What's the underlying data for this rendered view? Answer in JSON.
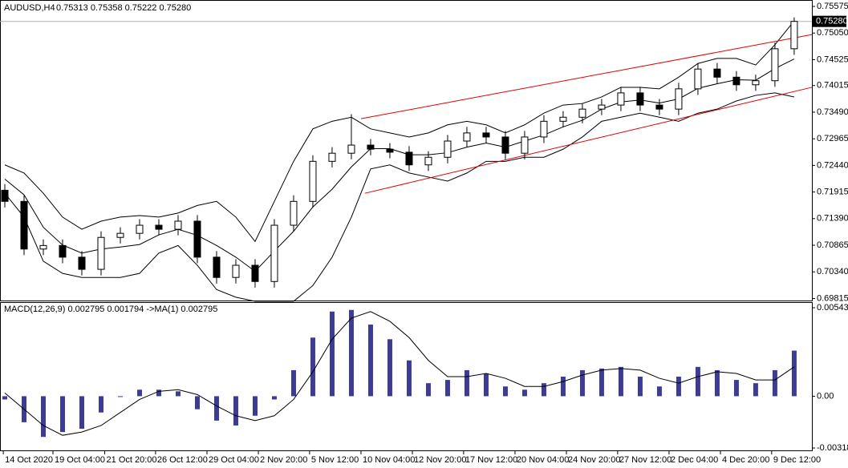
{
  "chart_data": [
    {
      "type": "candlestick",
      "title": "AUDUSD,H4",
      "subtitle": "0.75313 0.75358 0.75222 0.75280",
      "open": [
        0.7195,
        0.7173,
        0.7079,
        0.7086,
        0.7063,
        0.7039,
        0.7102,
        0.711,
        0.7126,
        0.7118,
        0.7134,
        0.7063,
        0.7023,
        0.7047,
        0.7015,
        0.7126,
        0.7173,
        0.7252,
        0.7268,
        0.7284,
        0.7276,
        0.727,
        0.7245,
        0.726,
        0.7292,
        0.7308,
        0.73,
        0.7268,
        0.73,
        0.7331,
        0.7339,
        0.7355,
        0.7363,
        0.7387,
        0.7363,
        0.7355,
        0.7395,
        0.7434,
        0.7418,
        0.7403,
        0.7411,
        0.7474
      ],
      "high": [
        0.7207,
        0.7185,
        0.7098,
        0.7098,
        0.7075,
        0.7114,
        0.7122,
        0.7138,
        0.7138,
        0.7146,
        0.7146,
        0.7075,
        0.7059,
        0.7059,
        0.7138,
        0.7185,
        0.7264,
        0.728,
        0.7345,
        0.7296,
        0.7288,
        0.7282,
        0.7272,
        0.7304,
        0.732,
        0.732,
        0.7312,
        0.7312,
        0.7343,
        0.7351,
        0.7367,
        0.7375,
        0.7399,
        0.7399,
        0.7375,
        0.7407,
        0.7446,
        0.7446,
        0.743,
        0.7423,
        0.7486,
        0.7536
      ],
      "low": [
        0.7161,
        0.7067,
        0.7067,
        0.7051,
        0.7027,
        0.7027,
        0.709,
        0.7098,
        0.7106,
        0.7106,
        0.7051,
        0.7011,
        0.7011,
        0.7003,
        0.7003,
        0.7114,
        0.7161,
        0.724,
        0.7256,
        0.7264,
        0.7258,
        0.7233,
        0.7233,
        0.7248,
        0.728,
        0.7288,
        0.7256,
        0.7256,
        0.7288,
        0.7319,
        0.7327,
        0.7343,
        0.7351,
        0.7351,
        0.7343,
        0.7343,
        0.7383,
        0.7406,
        0.7391,
        0.7391,
        0.7399,
        0.7462
      ],
      "close": [
        0.7173,
        0.7079,
        0.7086,
        0.7063,
        0.7039,
        0.7102,
        0.711,
        0.7126,
        0.7118,
        0.7134,
        0.7063,
        0.7023,
        0.7047,
        0.7015,
        0.7126,
        0.7173,
        0.7252,
        0.7268,
        0.7284,
        0.7276,
        0.727,
        0.7245,
        0.726,
        0.7292,
        0.7308,
        0.73,
        0.7268,
        0.73,
        0.7331,
        0.7339,
        0.7355,
        0.7363,
        0.7387,
        0.7363,
        0.7355,
        0.7395,
        0.7434,
        0.7418,
        0.7403,
        0.7411,
        0.7474,
        0.7528
      ],
      "up_color": "#ffffff",
      "down_color": "#000000",
      "wick_color": "#000000",
      "bands": {
        "color": "#000000",
        "upper": [
          0.7245,
          0.7229,
          0.7189,
          0.7142,
          0.7118,
          0.7134,
          0.7142,
          0.7145,
          0.7142,
          0.715,
          0.7165,
          0.7173,
          0.7142,
          0.7094,
          0.7173,
          0.7252,
          0.7316,
          0.7331,
          0.7339,
          0.7316,
          0.7308,
          0.73,
          0.7308,
          0.7324,
          0.7331,
          0.7324,
          0.7308,
          0.7324,
          0.7347,
          0.7363,
          0.7366,
          0.7379,
          0.7398,
          0.7398,
          0.7395,
          0.7418,
          0.7445,
          0.7455,
          0.7455,
          0.7442,
          0.7482,
          0.7529
        ],
        "middle": [
          0.7217,
          0.7186,
          0.7122,
          0.7087,
          0.7071,
          0.7079,
          0.7083,
          0.7088,
          0.7107,
          0.7118,
          0.7106,
          0.7086,
          0.7063,
          0.7035,
          0.7075,
          0.7114,
          0.7162,
          0.7197,
          0.7241,
          0.7277,
          0.7277,
          0.7265,
          0.7265,
          0.7269,
          0.728,
          0.7288,
          0.728,
          0.7292,
          0.7304,
          0.732,
          0.7333,
          0.7355,
          0.7369,
          0.7373,
          0.7367,
          0.7375,
          0.7396,
          0.7405,
          0.7413,
          0.7412,
          0.7435,
          0.7454
        ],
        "lower": [
          0.7189,
          0.7142,
          0.7055,
          0.7031,
          0.7023,
          0.7023,
          0.7023,
          0.7031,
          0.7071,
          0.7086,
          0.7047,
          0.6999,
          0.6984,
          0.6976,
          0.6976,
          0.6976,
          0.7007,
          0.7063,
          0.7142,
          0.7237,
          0.7245,
          0.7229,
          0.7221,
          0.7213,
          0.7229,
          0.7252,
          0.7252,
          0.726,
          0.726,
          0.7276,
          0.73,
          0.7331,
          0.7339,
          0.7347,
          0.7339,
          0.7331,
          0.7347,
          0.7355,
          0.7371,
          0.7382,
          0.7387,
          0.7379
        ]
      },
      "channel": {
        "color": "#e00000",
        "lines": [
          {
            "x": [
              18.5,
              41.92
            ],
            "y": [
              0.7336,
              0.7502
            ]
          },
          {
            "x": [
              18.7,
              41.92
            ],
            "y": [
              0.7189,
              0.7398
            ]
          }
        ]
      },
      "last": {
        "value": 0.7528,
        "label": "0.75280"
      },
      "xlim": [
        -0.25,
        41.92
      ],
      "xticks": [
        {
          "value": -0.08,
          "label": "14 Oct 2020"
        },
        {
          "value": 2.5,
          "label": "19 Oct 04:00"
        },
        {
          "value": 5.19,
          "label": "21 Oct 20:00"
        },
        {
          "value": 7.83,
          "label": "26 Oct 12:00"
        },
        {
          "value": 10.5,
          "label": "29 Oct 04:00"
        },
        {
          "value": 13.17,
          "label": "2 Nov 20:00"
        },
        {
          "value": 15.83,
          "label": "5 Nov 12:00"
        },
        {
          "value": 18.5,
          "label": "10 Nov 04:00"
        },
        {
          "value": 21.17,
          "label": "12 Nov 20:00"
        },
        {
          "value": 23.83,
          "label": "17 Nov 12:00"
        },
        {
          "value": 26.5,
          "label": "20 Nov 04:00"
        },
        {
          "value": 29.17,
          "label": "24 Nov 20:00"
        },
        {
          "value": 31.83,
          "label": "27 Nov 12:00"
        },
        {
          "value": 34.5,
          "label": "2 Dec 04:00"
        },
        {
          "value": 37.17,
          "label": "4 Dec 20:00"
        },
        {
          "value": 39.83,
          "label": "9 Dec 12:00"
        }
      ],
      "ylim": [
        0.69775,
        0.75686
      ],
      "yticks": [
        0.75575,
        {
          "value": 0.7505,
          "label": "0.75050"
        },
        0.74525,
        0.74015,
        {
          "value": 0.7349,
          "label": "0.73490"
        },
        0.72965,
        {
          "value": 0.7244,
          "label": "0.72440"
        },
        0.71915,
        {
          "value": 0.7139,
          "label": "0.71390"
        },
        0.70865,
        {
          "value": 0.7034,
          "label": "0.70340"
        },
        0.69815
      ]
    },
    {
      "type": "macd",
      "title": "MACD(12,26,9) 0.002795 0.001794 ->MA(1) 0.002795",
      "values": [
        -0.0002,
        -0.0016,
        -0.0025,
        -0.0022,
        -0.002,
        -0.001,
        0,
        0.0004,
        0.0004,
        0.0003,
        -0.0008,
        -0.0015,
        -0.0018,
        -0.0012,
        -0.0002,
        0.0016,
        0.0036,
        0.0052,
        0.0053,
        0.0044,
        0.0035,
        0.0022,
        0.0008,
        0.001,
        0.0016,
        0.0014,
        0.0006,
        0.0004,
        0.0008,
        0.0012,
        0.0016,
        0.0017,
        0.0018,
        0.0012,
        0.0006,
        0.0012,
        0.0018,
        0.0016,
        0.001,
        0.0008,
        0.0016,
        0.0028
      ],
      "signal": [
        0.0002,
        -0.0008,
        -0.0018,
        -0.0024,
        -0.0022,
        -0.0018,
        -0.001,
        -0.0002,
        0.0003,
        0.0004,
        0.0001,
        -0.0006,
        -0.0012,
        -0.0015,
        -0.0012,
        -0.0002,
        0.0015,
        0.0035,
        0.0048,
        0.0052,
        0.0046,
        0.0036,
        0.0022,
        0.0012,
        0.0012,
        0.0014,
        0.0011,
        0.0006,
        0.0006,
        0.0009,
        0.0013,
        0.0016,
        0.0017,
        0.0016,
        0.0011,
        0.0008,
        0.0012,
        0.0015,
        0.0014,
        0.001,
        0.001,
        0.0018
      ],
      "color": "#3c3c96",
      "signal_color": "#000000",
      "ylim": [
        -0.003327,
        0.00573
      ],
      "yticks": [
        0.005433,
        {
          "value": 0,
          "label": "0.00"
        },
        -0.003181
      ]
    }
  ]
}
